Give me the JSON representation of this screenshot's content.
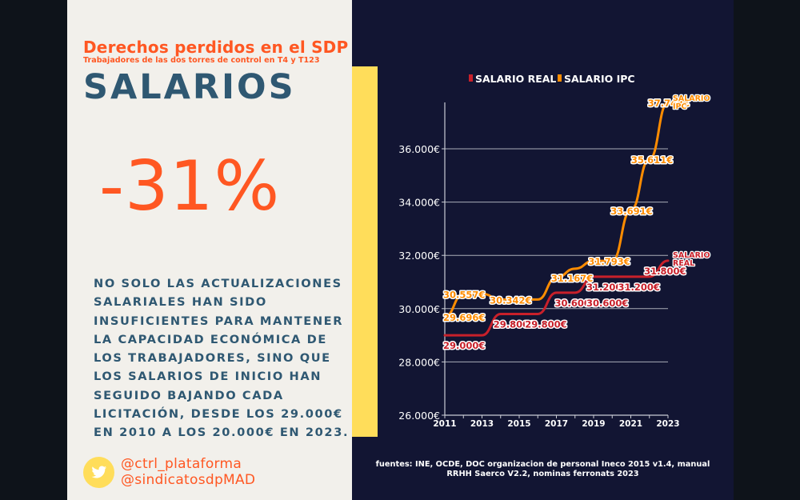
{
  "left_panel": {
    "title": "Derechos perdidos en el SDP",
    "subtitle": "Trabajadores de las dos torres de control en T4 y T123",
    "heading": "SALARIOS",
    "big_stat": "-31%",
    "body_lines": [
      "NO SOLO LAS ACTUALIZACIONES",
      "SALARIALES HAN SIDO",
      "INSUFICIENTES PARA MANTENER",
      "LA CAPACIDAD ECONÓMICA DE",
      "LOS TRABAJADORES, SINO QUE",
      "LOS SALARIOS DE INICIO HAN",
      "SEGUIDO BAJANDO CADA",
      "LICITACIÓN, DESDE LOS 29.000€",
      "EN 2010 A LOS 20.000€ EN 2023."
    ],
    "social": {
      "icon": "twitter-icon",
      "handles": [
        "@ctrl_plataforma",
        "@sindicatosdpMAD"
      ]
    }
  },
  "colors": {
    "accent": "#ff5722",
    "heading": "#2f5872",
    "yellow": "#ffdd5a",
    "chart_bg": "#121533",
    "real": "#c8202a",
    "ipc": "#ff8c00"
  },
  "sources": {
    "line1": "fuentes: INE, OCDE, DOC organizacion de personal Ineco 2015 v1.4, manual",
    "line2": "RRHH Saerco V2.2, nominas ferronats 2023"
  },
  "chart_data": {
    "type": "line",
    "title": "",
    "xlabel": "",
    "ylabel": "",
    "x": [
      2011,
      2012,
      2013,
      2014,
      2015,
      2016,
      2017,
      2018,
      2019,
      2020,
      2021,
      2022,
      2023
    ],
    "x_ticks": [
      "2011",
      "2013",
      "2015",
      "2017",
      "2019",
      "2021",
      "2023"
    ],
    "y_ticks": [
      "26.000€",
      "28.000€",
      "30.000€",
      "32.000€",
      "34.000€",
      "36.000€"
    ],
    "y_tick_values": [
      26000,
      28000,
      30000,
      32000,
      34000,
      36000
    ],
    "ylim": [
      26000,
      38000
    ],
    "grid": "horizontal",
    "legend_position": "top",
    "series": [
      {
        "name": "SALARIO REAL",
        "end_label": [
          "SALARIO",
          "REAL"
        ],
        "values": [
          29000,
          29000,
          29000,
          29800,
          29800,
          29800,
          30600,
          30600,
          31200,
          31200,
          31200,
          31200,
          31800
        ],
        "labels": [
          {
            "x": 2011,
            "y": 29000,
            "text": "29.000€"
          },
          {
            "x": 2013.7,
            "y": 29800,
            "text": "29.800€"
          },
          {
            "x": 2015.4,
            "y": 29800,
            "text": "29.800€"
          },
          {
            "x": 2017,
            "y": 30600,
            "text": "30.600€"
          },
          {
            "x": 2018.7,
            "y": 30600,
            "text": "30.600€"
          },
          {
            "x": 2018.7,
            "y": 31200,
            "text": "31.200€"
          },
          {
            "x": 2020.4,
            "y": 31200,
            "text": "31.200€"
          },
          {
            "x": 2021.8,
            "y": 31800,
            "text": "31.800€"
          }
        ]
      },
      {
        "name": "SALARIO IPC",
        "end_label": [
          "SALARIO",
          "IPC"
        ],
        "values": [
          29696,
          30557,
          30557,
          30342,
          30342,
          30342,
          31167,
          31500,
          31793,
          31793,
          33691,
          35611,
          37748
        ],
        "labels": [
          {
            "x": 2011,
            "y": 29696,
            "text": "29.696€"
          },
          {
            "x": 2011,
            "y": 30557,
            "text": "30.557€"
          },
          {
            "x": 2013.5,
            "y": 30342,
            "text": "30.342€"
          },
          {
            "x": 2016.8,
            "y": 31167,
            "text": "31.167€"
          },
          {
            "x": 2018.8,
            "y": 31793,
            "text": "31.793€"
          },
          {
            "x": 2020,
            "y": 33691,
            "text": "33.691€"
          },
          {
            "x": 2021.1,
            "y": 35611,
            "text": "35.611€"
          },
          {
            "x": 2022,
            "y": 37748,
            "text": "37.748€"
          }
        ]
      }
    ]
  }
}
